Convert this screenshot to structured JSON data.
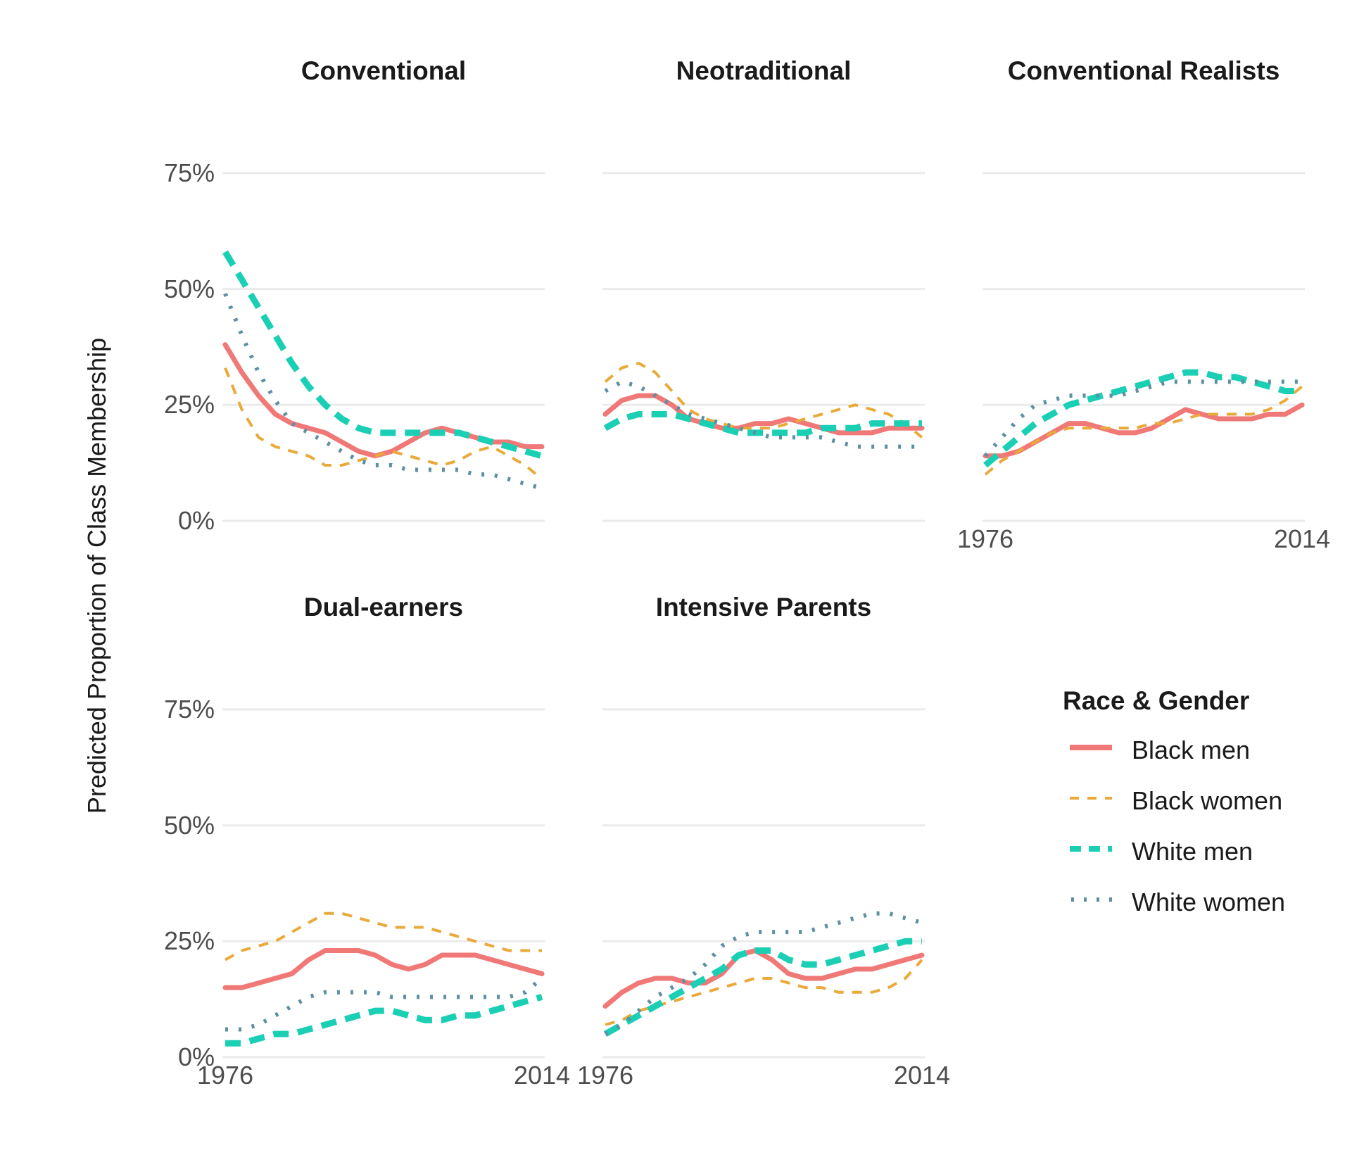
{
  "chart_data": {
    "type": "line",
    "ylabel": "Predicted Proportion of Class Membership",
    "y_ticks": [
      "0%",
      "25%",
      "50%",
      "75%"
    ],
    "y_tick_values": [
      0,
      25,
      50,
      75
    ],
    "ylim": [
      0,
      85
    ],
    "x_tick_labels": [
      "1976",
      "2014"
    ],
    "xlim": [
      1976,
      2014
    ],
    "grid": true,
    "legend": {
      "title": "Race & Gender",
      "placement": "right",
      "entries": [
        "Black men",
        "Black women",
        "White men",
        "White women"
      ]
    },
    "series_styles": [
      {
        "name": "Black men",
        "color": "#F07877",
        "dash": "solid"
      },
      {
        "name": "Black women",
        "color": "#E9A93B",
        "dash": "dashed"
      },
      {
        "name": "White men",
        "color": "#1ACFB4",
        "dash": "dashed"
      },
      {
        "name": "White women",
        "color": "#5E8FA3",
        "dash": "dotted"
      }
    ],
    "x": [
      1976,
      1978,
      1980,
      1982,
      1984,
      1986,
      1988,
      1990,
      1992,
      1994,
      1996,
      1998,
      2000,
      2002,
      2004,
      2006,
      2008,
      2010,
      2012,
      2014
    ],
    "panels": [
      {
        "title": "Conventional",
        "series": [
          {
            "name": "Black men",
            "values": [
              38,
              32,
              27,
              23,
              21,
              20,
              19,
              17,
              15,
              14,
              15,
              17,
              19,
              20,
              19,
              18,
              17,
              17,
              16,
              16
            ]
          },
          {
            "name": "Black women",
            "values": [
              33,
              24,
              18,
              16,
              15,
              14,
              12,
              12,
              13,
              14,
              15,
              14,
              13,
              12,
              13,
              15,
              16,
              14,
              12,
              9
            ]
          },
          {
            "name": "White men",
            "values": [
              58,
              52,
              46,
              40,
              34,
              29,
              25,
              22,
              20,
              19,
              19,
              19,
              19,
              19,
              19,
              18,
              17,
              16,
              15,
              14
            ]
          },
          {
            "name": "White women",
            "values": [
              49,
              40,
              32,
              26,
              21,
              19,
              17,
              15,
              13,
              12,
              12,
              11,
              11,
              11,
              11,
              10,
              10,
              9,
              8,
              7
            ]
          }
        ]
      },
      {
        "title": "Neotraditional",
        "series": [
          {
            "name": "Black men",
            "values": [
              23,
              26,
              27,
              27,
              25,
              22,
              21,
              20,
              20,
              21,
              21,
              22,
              21,
              20,
              19,
              19,
              19,
              20,
              20,
              20
            ]
          },
          {
            "name": "Black women",
            "values": [
              30,
              33,
              34,
              32,
              28,
              24,
              22,
              21,
              20,
              20,
              20,
              21,
              22,
              23,
              24,
              25,
              24,
              23,
              21,
              18
            ]
          },
          {
            "name": "White men",
            "values": [
              20,
              22,
              23,
              23,
              23,
              22,
              21,
              20,
              19,
              19,
              19,
              19,
              19,
              20,
              20,
              20,
              21,
              21,
              21,
              21
            ]
          },
          {
            "name": "White women",
            "values": [
              28,
              30,
              29,
              27,
              25,
              23,
              22,
              21,
              20,
              19,
              18,
              18,
              18,
              18,
              17,
              16,
              16,
              16,
              16,
              16
            ]
          }
        ]
      },
      {
        "title": "Conventional Realists",
        "series": [
          {
            "name": "Black men",
            "values": [
              14,
              14,
              15,
              17,
              19,
              21,
              21,
              20,
              19,
              19,
              20,
              22,
              24,
              23,
              22,
              22,
              22,
              23,
              23,
              25
            ]
          },
          {
            "name": "Black women",
            "values": [
              10,
              13,
              15,
              17,
              19,
              20,
              20,
              20,
              20,
              20,
              21,
              21,
              22,
              23,
              23,
              23,
              23,
              24,
              26,
              29
            ]
          },
          {
            "name": "White men",
            "values": [
              12,
              15,
              18,
              21,
              23,
              25,
              26,
              27,
              28,
              29,
              30,
              31,
              32,
              32,
              31,
              31,
              30,
              29,
              28,
              28
            ]
          },
          {
            "name": "White women",
            "values": [
              14,
              18,
              22,
              25,
              26,
              27,
              27,
              27,
              27,
              28,
              29,
              30,
              30,
              30,
              30,
              30,
              30,
              30,
              30,
              30
            ]
          }
        ]
      },
      {
        "title": "Dual-earners",
        "series": [
          {
            "name": "Black men",
            "values": [
              15,
              15,
              16,
              17,
              18,
              21,
              23,
              23,
              23,
              22,
              20,
              19,
              20,
              22,
              22,
              22,
              21,
              20,
              19,
              18
            ]
          },
          {
            "name": "Black women",
            "values": [
              21,
              23,
              24,
              25,
              27,
              29,
              31,
              31,
              30,
              29,
              28,
              28,
              28,
              27,
              26,
              25,
              24,
              23,
              23,
              23
            ]
          },
          {
            "name": "White men",
            "values": [
              3,
              3,
              4,
              5,
              5,
              6,
              7,
              8,
              9,
              10,
              10,
              9,
              8,
              8,
              9,
              9,
              10,
              11,
              12,
              13
            ]
          },
          {
            "name": "White women",
            "values": [
              6,
              6,
              7,
              9,
              11,
              13,
              14,
              14,
              14,
              14,
              13,
              13,
              13,
              13,
              13,
              13,
              13,
              13,
              14,
              17
            ]
          }
        ]
      },
      {
        "title": "Intensive Parents",
        "series": [
          {
            "name": "Black men",
            "values": [
              11,
              14,
              16,
              17,
              17,
              16,
              16,
              18,
              22,
              23,
              21,
              18,
              17,
              17,
              18,
              19,
              19,
              20,
              21,
              22
            ]
          },
          {
            "name": "Black women",
            "values": [
              7,
              8,
              10,
              11,
              12,
              13,
              14,
              15,
              16,
              17,
              17,
              16,
              15,
              15,
              14,
              14,
              14,
              15,
              17,
              21
            ]
          },
          {
            "name": "White men",
            "values": [
              5,
              7,
              9,
              11,
              13,
              15,
              17,
              19,
              22,
              23,
              23,
              21,
              20,
              20,
              21,
              22,
              23,
              24,
              25,
              25
            ]
          },
          {
            "name": "White women",
            "values": [
              5,
              7,
              10,
              13,
              15,
              17,
              20,
              24,
              26,
              27,
              27,
              27,
              27,
              28,
              29,
              30,
              31,
              31,
              30,
              29
            ]
          }
        ]
      }
    ]
  }
}
